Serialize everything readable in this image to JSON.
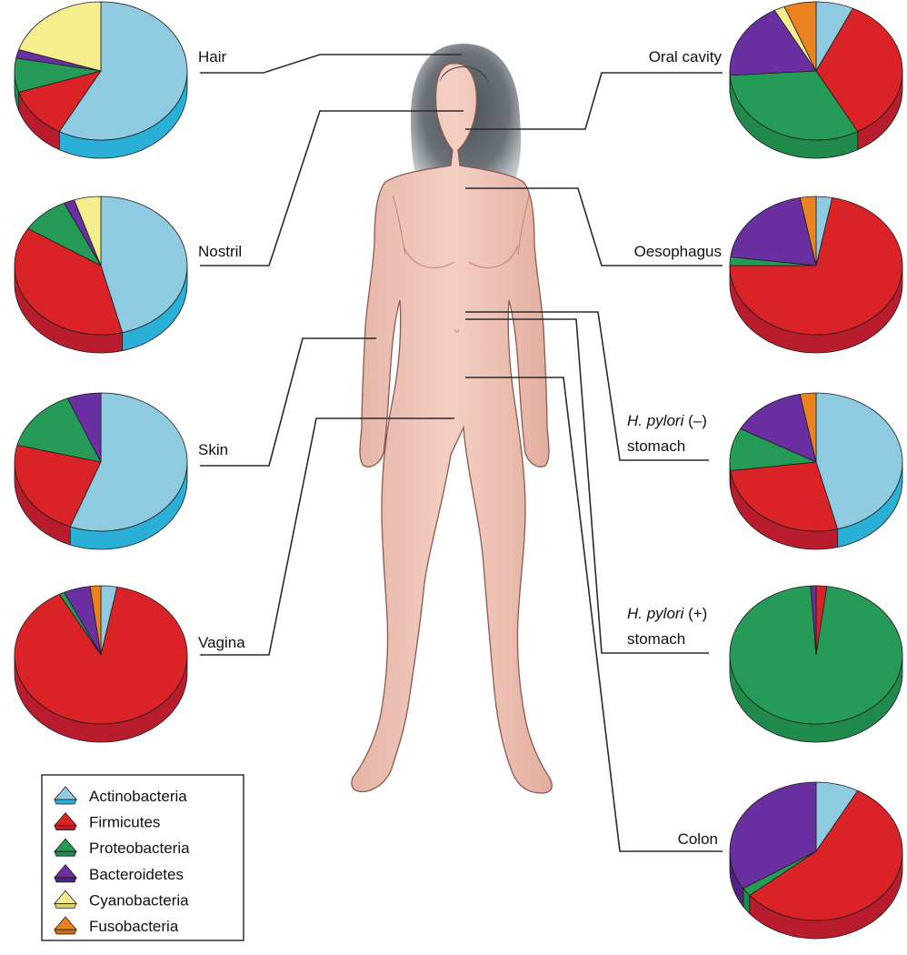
{
  "phyla": [
    {
      "key": "actino",
      "name": "Actinobacteria",
      "color": "#8ecae0",
      "dark": "#2ab0d6"
    },
    {
      "key": "firm",
      "name": "Firmicutes",
      "color": "#d92327",
      "dark": "#b81c2d"
    },
    {
      "key": "proteo",
      "name": "Proteobacteria",
      "color": "#269a57",
      "dark": "#1f8a4c"
    },
    {
      "key": "bact",
      "name": "Bacteroidetes",
      "color": "#6a2fa0",
      "dark": "#52237f"
    },
    {
      "key": "cyano",
      "name": "Cyanobacteria",
      "color": "#f6ed8f",
      "dark": "#d8cf6a"
    },
    {
      "key": "fuso",
      "name": "Fusobacteria",
      "color": "#e9821f",
      "dark": "#c96a15"
    }
  ],
  "chart_data": {
    "type": "pie",
    "title": "",
    "series_order": [
      "Actinobacteria",
      "Firmicutes",
      "Proteobacteria",
      "Bacteroidetes",
      "Cyanobacteria",
      "Fusobacteria"
    ],
    "sites": [
      {
        "key": "hair",
        "label": "Hair",
        "values": {
          "Actinobacteria": 58,
          "Firmicutes": 12,
          "Proteobacteria": 8,
          "Bacteroidetes": 2,
          "Cyanobacteria": 20,
          "Fusobacteria": 0
        }
      },
      {
        "key": "nostril",
        "label": "Nostril",
        "values": {
          "Actinobacteria": 46,
          "Firmicutes": 38,
          "Proteobacteria": 9,
          "Bacteroidetes": 2,
          "Cyanobacteria": 5,
          "Fusobacteria": 0
        }
      },
      {
        "key": "skin",
        "label": "Skin",
        "values": {
          "Actinobacteria": 53,
          "Firmicutes": 22,
          "Proteobacteria": 14,
          "Bacteroidetes": 6,
          "Cyanobacteria": 0,
          "Fusobacteria": 0
        }
      },
      {
        "key": "vagina",
        "label": "Vagina",
        "values": {
          "Actinobacteria": 3,
          "Firmicutes": 89,
          "Proteobacteria": 1,
          "Bacteroidetes": 5,
          "Cyanobacteria": 0,
          "Fusobacteria": 2
        }
      },
      {
        "key": "oral",
        "label": "Oral cavity",
        "values": {
          "Actinobacteria": 7,
          "Firmicutes": 35,
          "Proteobacteria": 32,
          "Bacteroidetes": 18,
          "Cyanobacteria": 2,
          "Fusobacteria": 6
        }
      },
      {
        "key": "oesophagus",
        "label": "Oesophagus",
        "values": {
          "Actinobacteria": 3,
          "Firmicutes": 72,
          "Proteobacteria": 2,
          "Bacteroidetes": 20,
          "Cyanobacteria": 0,
          "Fusobacteria": 3
        }
      },
      {
        "key": "hp_neg",
        "label_italic": "H. pylori",
        "label_rest": " (–)",
        "label_line2": "stomach",
        "values": {
          "Actinobacteria": 46,
          "Firmicutes": 27,
          "Proteobacteria": 10,
          "Bacteroidetes": 14,
          "Cyanobacteria": 0,
          "Fusobacteria": 3
        }
      },
      {
        "key": "hp_pos",
        "label_italic": "H. pylori",
        "label_rest": " (+)",
        "label_line2": "stomach",
        "values": {
          "Actinobacteria": 0,
          "Firmicutes": 2,
          "Proteobacteria": 97,
          "Bacteroidetes": 1,
          "Cyanobacteria": 0,
          "Fusobacteria": 0
        }
      },
      {
        "key": "colon",
        "label": "Colon",
        "values": {
          "Actinobacteria": 8,
          "Firmicutes": 56,
          "Proteobacteria": 2,
          "Bacteroidetes": 34,
          "Cyanobacteria": 0,
          "Fusobacteria": 0
        }
      }
    ]
  }
}
